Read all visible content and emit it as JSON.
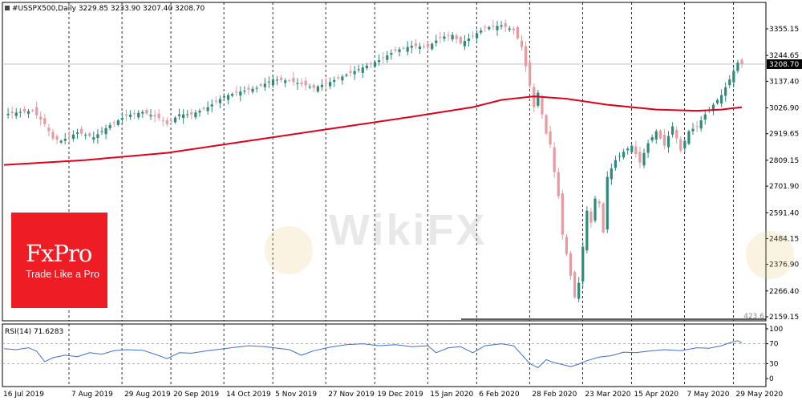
{
  "header": {
    "symbol": "#USSPX500,Daily",
    "ohlc": "3229.85 3233.90 3207.40 3208.70"
  },
  "branding": {
    "logo": "FxPro",
    "tagline": "Trade Like a Pro",
    "watermark": "WikiFX"
  },
  "colors": {
    "up_candle": "#2e8b7a",
    "down_candle": "#e79aa0",
    "ma_line": "#e0001b",
    "rsi_line": "#3d6fd1",
    "current_price_box": "#000000"
  },
  "chart_data": [
    {
      "type": "candlestick",
      "title": "#USSPX500,Daily",
      "y_ticks": [
        "3355.15",
        "3244.65",
        "3137.40",
        "3026.90",
        "2919.65",
        "2809.15",
        "2701.90",
        "2591.40",
        "2484.15",
        "2376.90",
        "2266.40",
        "2159.15"
      ],
      "ylim": [
        2159.15,
        3440
      ],
      "x_ticks": [
        "16 Jul 2019",
        "7 Aug 2019",
        "29 Aug 2019",
        "20 Sep 2019",
        "14 Oct 2019",
        "5 Nov 2019",
        "27 Nov 2019",
        "19 Dec 2019",
        "15 Jan 2020",
        "6 Feb 2020",
        "28 Feb 2020",
        "23 Mar 2020",
        "15 Apr 2020",
        "7 May 2020",
        "29 May 2020"
      ],
      "current_price": "3208.70",
      "bottom_note": "423.6",
      "series": [
        {
          "name": "Daily close",
          "values": [
            [
              0,
              3000
            ],
            [
              4,
              3010
            ],
            [
              7,
              3015
            ],
            [
              10,
              2960
            ],
            [
              12,
              2900
            ],
            [
              14,
              2890
            ],
            [
              18,
              2925
            ],
            [
              22,
              2905
            ],
            [
              26,
              2955
            ],
            [
              30,
              2995
            ],
            [
              34,
              3010
            ],
            [
              38,
              2985
            ],
            [
              40,
              2960
            ],
            [
              43,
              3000
            ],
            [
              46,
              3000
            ],
            [
              50,
              3030
            ],
            [
              54,
              3075
            ],
            [
              58,
              3095
            ],
            [
              62,
              3110
            ],
            [
              66,
              3145
            ],
            [
              70,
              3140
            ],
            [
              74,
              3120
            ],
            [
              76,
              3110
            ],
            [
              80,
              3135
            ],
            [
              84,
              3165
            ],
            [
              88,
              3195
            ],
            [
              92,
              3225
            ],
            [
              96,
              3265
            ],
            [
              100,
              3285
            ],
            [
              104,
              3280
            ],
            [
              107,
              3320
            ],
            [
              110,
              3330
            ],
            [
              112,
              3295
            ],
            [
              115,
              3325
            ],
            [
              118,
              3360
            ],
            [
              122,
              3370
            ],
            [
              125,
              3350
            ],
            [
              127,
              3280
            ],
            [
              128,
              3200
            ],
            [
              129,
              3120
            ],
            [
              130,
              3030
            ],
            [
              131,
              3090
            ],
            [
              132,
              3000
            ],
            [
              133,
              2920
            ],
            [
              134,
              2875
            ],
            [
              135,
              2760
            ],
            [
              136,
              2660
            ],
            [
              137,
              2500
            ],
            [
              138,
              2420
            ],
            [
              139,
              2330
            ],
            [
              140,
              2240
            ],
            [
              141,
              2300
            ],
            [
              142,
              2450
            ],
            [
              143,
              2600
            ],
            [
              144,
              2550
            ],
            [
              145,
              2650
            ],
            [
              146,
              2630
            ],
            [
              147,
              2510
            ],
            [
              148,
              2740
            ],
            [
              150,
              2810
            ],
            [
              152,
              2845
            ],
            [
              154,
              2870
            ],
            [
              156,
              2800
            ],
            [
              158,
              2880
            ],
            [
              160,
              2930
            ],
            [
              162,
              2870
            ],
            [
              164,
              2950
            ],
            [
              166,
              2850
            ],
            [
              168,
              2930
            ],
            [
              170,
              2950
            ],
            [
              172,
              3000
            ],
            [
              174,
              3040
            ],
            [
              176,
              3080
            ],
            [
              178,
              3145
            ],
            [
              180,
              3215
            ],
            [
              181,
              3210
            ]
          ]
        },
        {
          "name": "Moving average",
          "values": [
            [
              0,
              2790
            ],
            [
              20,
              2810
            ],
            [
              40,
              2840
            ],
            [
              60,
              2890
            ],
            [
              80,
              2940
            ],
            [
              100,
              2990
            ],
            [
              115,
              3030
            ],
            [
              122,
              3060
            ],
            [
              130,
              3075
            ],
            [
              138,
              3065
            ],
            [
              148,
              3040
            ],
            [
              160,
              3020
            ],
            [
              170,
              3015
            ],
            [
              176,
              3020
            ],
            [
              181,
              3030
            ]
          ]
        }
      ]
    },
    {
      "type": "line",
      "title": "RSI(14) 71.6283",
      "y_ticks": [
        "100",
        "70",
        "30",
        "0"
      ],
      "ylim": [
        0,
        100
      ],
      "levels": [
        70,
        30
      ],
      "series": [
        {
          "name": "RSI(14)",
          "values": [
            [
              0,
              60
            ],
            [
              3,
              58
            ],
            [
              6,
              62
            ],
            [
              8,
              55
            ],
            [
              10,
              34
            ],
            [
              12,
              42
            ],
            [
              15,
              47
            ],
            [
              18,
              44
            ],
            [
              21,
              52
            ],
            [
              24,
              49
            ],
            [
              27,
              56
            ],
            [
              30,
              58
            ],
            [
              34,
              57
            ],
            [
              37,
              49
            ],
            [
              40,
              40
            ],
            [
              43,
              52
            ],
            [
              46,
              51
            ],
            [
              50,
              56
            ],
            [
              54,
              60
            ],
            [
              57,
              63
            ],
            [
              60,
              66
            ],
            [
              64,
              64
            ],
            [
              68,
              60
            ],
            [
              70,
              58
            ],
            [
              73,
              47
            ],
            [
              76,
              56
            ],
            [
              80,
              63
            ],
            [
              84,
              68
            ],
            [
              88,
              70
            ],
            [
              92,
              66
            ],
            [
              96,
              68
            ],
            [
              100,
              64
            ],
            [
              104,
              66
            ],
            [
              106,
              52
            ],
            [
              109,
              62
            ],
            [
              112,
              64
            ],
            [
              115,
              52
            ],
            [
              118,
              66
            ],
            [
              122,
              70
            ],
            [
              125,
              66
            ],
            [
              127,
              48
            ],
            [
              129,
              30
            ],
            [
              131,
              22
            ],
            [
              133,
              38
            ],
            [
              135,
              32
            ],
            [
              137,
              28
            ],
            [
              139,
              24
            ],
            [
              141,
              29
            ],
            [
              143,
              36
            ],
            [
              146,
              43
            ],
            [
              149,
              46
            ],
            [
              152,
              53
            ],
            [
              155,
              52
            ],
            [
              158,
              55
            ],
            [
              162,
              58
            ],
            [
              166,
              56
            ],
            [
              170,
              62
            ],
            [
              173,
              61
            ],
            [
              176,
              66
            ],
            [
              178,
              72
            ],
            [
              180,
              76
            ],
            [
              181,
              72
            ]
          ]
        }
      ]
    }
  ]
}
